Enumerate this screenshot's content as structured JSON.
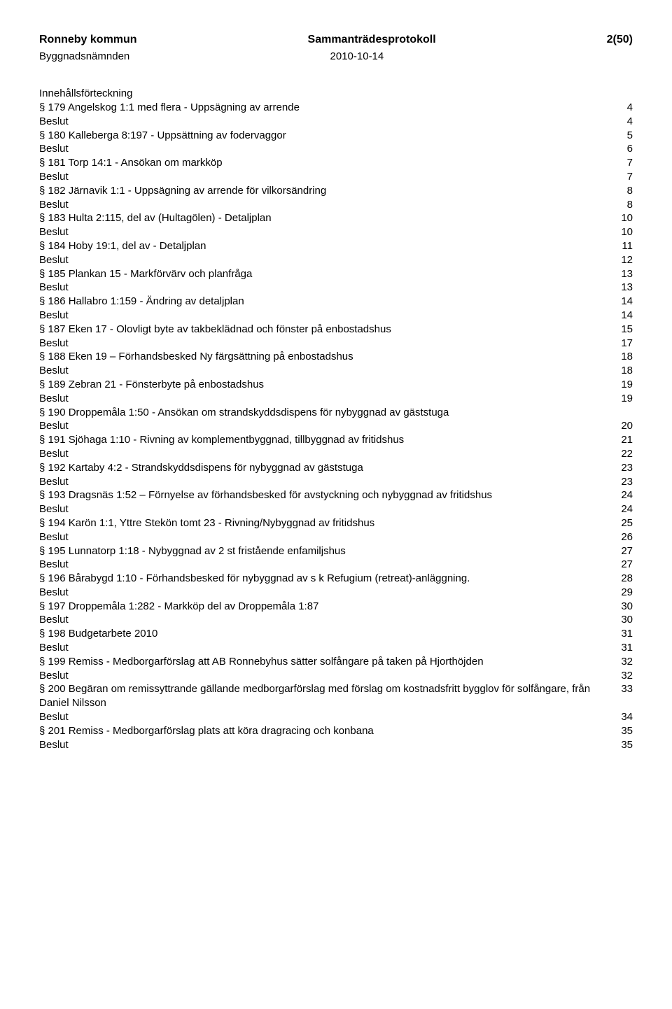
{
  "header": {
    "left": "Ronneby kommun",
    "center": "Sammanträdesprotokoll",
    "right": "2(50)"
  },
  "subheader": {
    "left": "Byggnadsnämnden",
    "right": "2010-10-14"
  },
  "tocTitle": "Innehållsförteckning",
  "entries": [
    {
      "label": "§ 179  Angelskog 1:1 med flera - Uppsägning av arrende",
      "page": "4"
    },
    {
      "label": "Beslut",
      "page": "4"
    },
    {
      "label": "§ 180  Kalleberga 8:197 - Uppsättning av fodervaggor",
      "page": "5"
    },
    {
      "label": "Beslut",
      "page": "6"
    },
    {
      "label": "§ 181  Torp 14:1 - Ansökan om markköp",
      "page": "7"
    },
    {
      "label": "Beslut",
      "page": "7"
    },
    {
      "label": "§ 182  Järnavik 1:1 - Uppsägning av arrende för vilkorsändring",
      "page": "8"
    },
    {
      "label": "Beslut",
      "page": "8"
    },
    {
      "label": "§ 183  Hulta 2:115, del av (Hultagölen) - Detaljplan",
      "page": "10"
    },
    {
      "label": "Beslut",
      "page": "10"
    },
    {
      "label": "§ 184  Hoby 19:1, del av - Detaljplan",
      "page": "11"
    },
    {
      "label": "Beslut",
      "page": "12"
    },
    {
      "label": "§ 185  Plankan 15 - Markförvärv och planfråga",
      "page": "13"
    },
    {
      "label": "Beslut",
      "page": "13"
    },
    {
      "label": "§ 186  Hallabro 1:159 - Ändring av detaljplan",
      "page": "14"
    },
    {
      "label": "Beslut",
      "page": "14"
    },
    {
      "label": "§ 187  Eken 17 - Olovligt byte av takbeklädnad och fönster på enbostadshus",
      "page": "15"
    },
    {
      "label": "Beslut",
      "page": "17"
    },
    {
      "label": "§ 188  Eken 19 – Förhandsbesked Ny färgsättning på enbostadshus",
      "page": "18"
    },
    {
      "label": "Beslut",
      "page": "18"
    },
    {
      "label": "§ 189  Zebran 21 - Fönsterbyte på enbostadshus",
      "page": "19"
    },
    {
      "label": "Beslut",
      "page": "19"
    },
    {
      "label": "§ 190  Droppemåla 1:50 - Ansökan om strandskyddsdispens för nybyggnad av gäststuga",
      "page": ""
    },
    {
      "label": "Beslut",
      "page": "20"
    },
    {
      "label": "§ 191  Sjöhaga 1:10 - Rivning av komplementbyggnad, tillbyggnad av fritidshus",
      "page": "21"
    },
    {
      "label": "Beslut",
      "page": "22"
    },
    {
      "label": "§ 192  Kartaby 4:2 - Strandskyddsdispens för nybyggnad av gäststuga",
      "page": "23"
    },
    {
      "label": "Beslut",
      "page": "23"
    },
    {
      "label": "§ 193  Dragsnäs 1:52 – Förnyelse av förhandsbesked för avstyckning och nybyggnad av fritidshus",
      "page": "24"
    },
    {
      "label": "Beslut",
      "page": "24"
    },
    {
      "label": "§ 194  Karön 1:1, Yttre Stekön tomt 23 - Rivning/Nybyggnad av fritidshus",
      "page": "25"
    },
    {
      "label": "Beslut",
      "page": "26"
    },
    {
      "label": "§ 195  Lunnatorp 1:18 - Nybyggnad av 2 st fristående enfamiljshus",
      "page": "27"
    },
    {
      "label": "Beslut",
      "page": "27"
    },
    {
      "label": "§ 196  Bårabygd 1:10 - Förhandsbesked för nybyggnad av s k Refugium (retreat)-anläggning.",
      "page": "28"
    },
    {
      "label": "Beslut",
      "page": "29"
    },
    {
      "label": "§ 197  Droppemåla 1:282 - Markköp del av Droppemåla 1:87",
      "page": "30"
    },
    {
      "label": "Beslut",
      "page": "30"
    },
    {
      "label": "§ 198  Budgetarbete 2010",
      "page": "31"
    },
    {
      "label": "Beslut",
      "page": "31"
    },
    {
      "label": "§ 199  Remiss - Medborgarförslag att AB Ronnebyhus sätter solfångare på taken på Hjorthöjden",
      "page": "32"
    },
    {
      "label": "Beslut",
      "page": "32"
    },
    {
      "label": "§ 200  Begäran om remissyttrande gällande medborgarförslag med förslag om kostnadsfritt bygglov för solfångare, från Daniel Nilsson",
      "page": "33"
    },
    {
      "label": "Beslut",
      "page": "34"
    },
    {
      "label": "§ 201  Remiss - Medborgarförslag plats att köra dragracing och konbana",
      "page": "35"
    },
    {
      "label": "Beslut",
      "page": "35"
    }
  ]
}
